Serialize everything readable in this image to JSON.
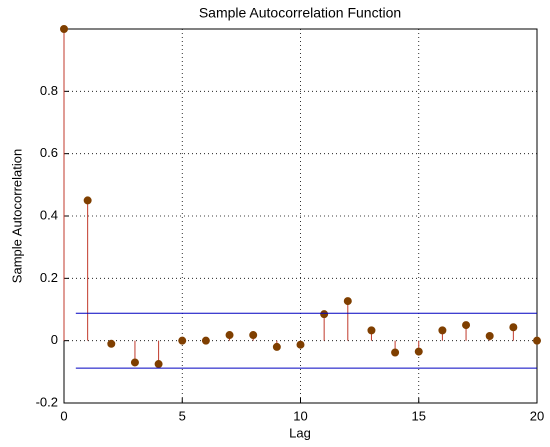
{
  "chart_data": {
    "type": "stem",
    "title": "Sample Autocorrelation Function",
    "x_label": "Lag",
    "y_label": "Sample Autocorrelation",
    "x": [
      0,
      1,
      2,
      3,
      4,
      5,
      6,
      7,
      8,
      9,
      10,
      11,
      12,
      13,
      14,
      15,
      16,
      17,
      18,
      19,
      20
    ],
    "values": [
      1.0,
      0.45,
      -0.01,
      -0.07,
      -0.075,
      0.0,
      0.0,
      0.018,
      0.018,
      -0.02,
      -0.013,
      0.085,
      0.127,
      0.033,
      -0.038,
      -0.035,
      0.033,
      0.05,
      0.015,
      0.043,
      0.0
    ],
    "stem_color": "#c0392b",
    "marker_color": "#7f3f00",
    "bounds": [
      0.088,
      -0.088
    ],
    "bound_color": "#0000c0",
    "xlim": [
      0,
      20
    ],
    "xticks": [
      0,
      5,
      10,
      15,
      20
    ],
    "ylim": [
      -0.2,
      1
    ],
    "yticks": [
      -0.2,
      0,
      0.2,
      0.4,
      0.6,
      0.8
    ],
    "grid": true
  }
}
